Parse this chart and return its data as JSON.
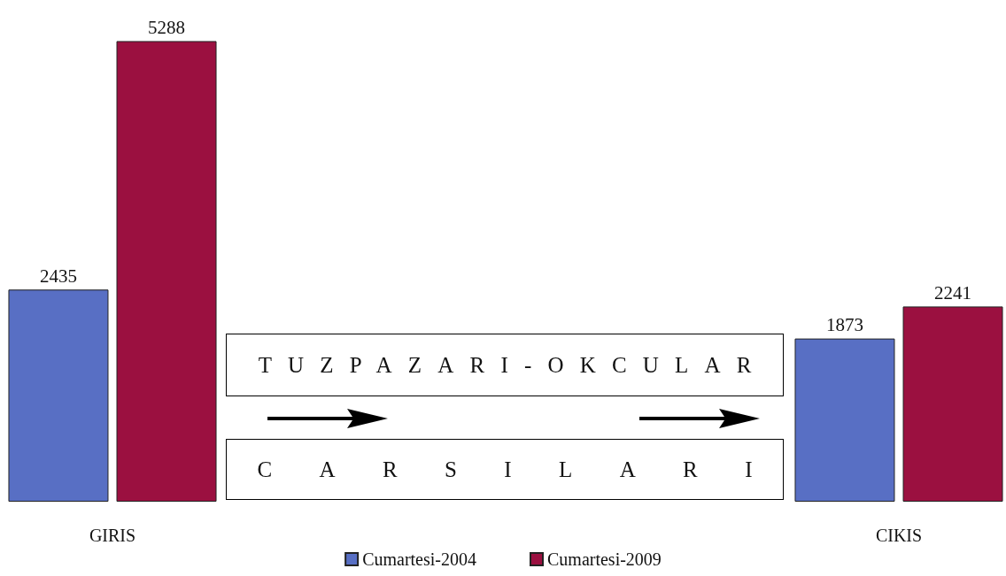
{
  "chart_data": {
    "type": "bar",
    "categories": [
      "GIRIS",
      "CIKIS"
    ],
    "series": [
      {
        "name": "Cumartesi-2004",
        "color": "#586fc4",
        "values": [
          2435,
          1873
        ]
      },
      {
        "name": "Cumartesi-2009",
        "color": "#9b1040",
        "values": [
          5288,
          2241
        ]
      }
    ],
    "data_labels": true,
    "legend": "bottom",
    "grid": false,
    "annotations": [
      "TUZPAZARI-OKCULAR",
      "CARSILARI"
    ]
  }
}
